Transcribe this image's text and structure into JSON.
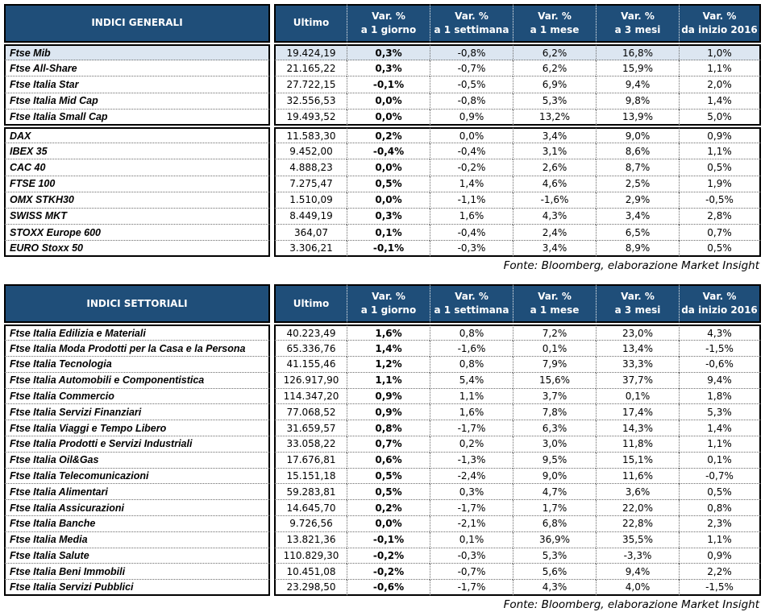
{
  "colors": {
    "header_bg": "#1F4E79",
    "header_text": "#FFFFFF",
    "highlight_row_bg": "#DCE6F1",
    "border": "#000000"
  },
  "tables": [
    {
      "title": "INDICI GENERALI",
      "source": "Fonte: Bloomberg, elaborazione Market Insight",
      "columns": [
        {
          "line1": "Ultimo",
          "line2": ""
        },
        {
          "line1": "Var. %",
          "line2": "a 1 giorno"
        },
        {
          "line1": "Var. %",
          "line2": "a 1 settimana"
        },
        {
          "line1": "Var. %",
          "line2": "a 1 mese"
        },
        {
          "line1": "Var. %",
          "line2": "a 3 mesi"
        },
        {
          "line1": "Var. %",
          "line2": "da inizio 2016"
        }
      ],
      "groups": [
        {
          "rows": [
            {
              "name": "Ftse Mib",
              "ultimo": "19.424,19",
              "vars": [
                "0,3%",
                "-0,8%",
                "6,2%",
                "16,8%",
                "1,0%"
              ],
              "highlight": true
            },
            {
              "name": "Ftse All-Share",
              "ultimo": "21.165,22",
              "vars": [
                "0,3%",
                "-0,7%",
                "6,2%",
                "15,9%",
                "1,1%"
              ],
              "highlight": false
            },
            {
              "name": "Ftse Italia Star",
              "ultimo": "27.722,15",
              "vars": [
                "-0,1%",
                "-0,5%",
                "6,9%",
                "9,4%",
                "2,0%"
              ],
              "highlight": false
            },
            {
              "name": "Ftse Italia Mid Cap",
              "ultimo": "32.556,53",
              "vars": [
                "0,0%",
                "-0,8%",
                "5,3%",
                "9,8%",
                "1,4%"
              ],
              "highlight": false
            },
            {
              "name": "Ftse Italia Small Cap",
              "ultimo": "19.493,52",
              "vars": [
                "0,0%",
                "0,9%",
                "13,2%",
                "13,9%",
                "5,0%"
              ],
              "highlight": false
            }
          ]
        },
        {
          "rows": [
            {
              "name": "DAX",
              "ultimo": "11.583,30",
              "vars": [
                "0,2%",
                "0,0%",
                "3,4%",
                "9,0%",
                "0,9%"
              ],
              "highlight": false
            },
            {
              "name": "IBEX 35",
              "ultimo": "9.452,00",
              "vars": [
                "-0,4%",
                "-0,4%",
                "3,1%",
                "8,6%",
                "1,1%"
              ],
              "highlight": false
            },
            {
              "name": "CAC 40",
              "ultimo": "4.888,23",
              "vars": [
                "0,0%",
                "-0,2%",
                "2,6%",
                "8,7%",
                "0,5%"
              ],
              "highlight": false
            },
            {
              "name": "FTSE 100",
              "ultimo": "7.275,47",
              "vars": [
                "0,5%",
                "1,4%",
                "4,6%",
                "2,5%",
                "1,9%"
              ],
              "highlight": false
            },
            {
              "name": "OMX STKH30",
              "ultimo": "1.510,09",
              "vars": [
                "0,0%",
                "-1,1%",
                "-1,6%",
                "2,9%",
                "-0,5%"
              ],
              "highlight": false
            },
            {
              "name": "SWISS MKT",
              "ultimo": "8.449,19",
              "vars": [
                "0,3%",
                "1,6%",
                "4,3%",
                "3,4%",
                "2,8%"
              ],
              "highlight": false
            },
            {
              "name": "STOXX Europe 600",
              "ultimo": "364,07",
              "vars": [
                "0,1%",
                "-0,4%",
                "2,4%",
                "6,5%",
                "0,7%"
              ],
              "highlight": false
            },
            {
              "name": "EURO Stoxx 50",
              "ultimo": "3.306,21",
              "vars": [
                "-0,1%",
                "-0,3%",
                "3,4%",
                "8,9%",
                "0,5%"
              ],
              "highlight": false
            }
          ]
        }
      ]
    },
    {
      "title": "INDICI SETTORIALI",
      "source": "Fonte: Bloomberg, elaborazione Market Insight",
      "columns": [
        {
          "line1": "Ultimo",
          "line2": ""
        },
        {
          "line1": "Var. %",
          "line2": "a 1 giorno"
        },
        {
          "line1": "Var. %",
          "line2": "a 1 settimana"
        },
        {
          "line1": "Var. %",
          "line2": "a 1 mese"
        },
        {
          "line1": "Var. %",
          "line2": "a 3 mesi"
        },
        {
          "line1": "Var. %",
          "line2": "da inizio 2016"
        }
      ],
      "groups": [
        {
          "rows": [
            {
              "name": "Ftse Italia Edilizia e Materiali",
              "ultimo": "40.223,49",
              "vars": [
                "1,6%",
                "0,8%",
                "7,2%",
                "23,0%",
                "4,3%"
              ],
              "highlight": false
            },
            {
              "name": "Ftse Italia Moda Prodotti per la Casa e la Persona",
              "ultimo": "65.336,76",
              "vars": [
                "1,4%",
                "-1,6%",
                "0,1%",
                "13,4%",
                "-1,5%"
              ],
              "highlight": false
            },
            {
              "name": "Ftse Italia Tecnologia",
              "ultimo": "41.155,46",
              "vars": [
                "1,2%",
                "0,8%",
                "7,9%",
                "33,3%",
                "-0,6%"
              ],
              "highlight": false
            },
            {
              "name": "Ftse Italia Automobili e Componentistica",
              "ultimo": "126.917,90",
              "vars": [
                "1,1%",
                "5,4%",
                "15,6%",
                "37,7%",
                "9,4%"
              ],
              "highlight": false
            },
            {
              "name": "Ftse Italia Commercio",
              "ultimo": "114.347,20",
              "vars": [
                "0,9%",
                "1,1%",
                "3,7%",
                "0,1%",
                "1,8%"
              ],
              "highlight": false
            },
            {
              "name": "Ftse Italia Servizi Finanziari",
              "ultimo": "77.068,52",
              "vars": [
                "0,9%",
                "1,6%",
                "7,8%",
                "17,4%",
                "5,3%"
              ],
              "highlight": false
            },
            {
              "name": "Ftse Italia Viaggi e Tempo Libero",
              "ultimo": "31.659,57",
              "vars": [
                "0,8%",
                "-1,7%",
                "6,3%",
                "14,3%",
                "1,4%"
              ],
              "highlight": false
            },
            {
              "name": "Ftse Italia Prodotti e Servizi Industriali",
              "ultimo": "33.058,22",
              "vars": [
                "0,7%",
                "0,2%",
                "3,0%",
                "11,8%",
                "1,1%"
              ],
              "highlight": false
            },
            {
              "name": "Ftse Italia Oil&Gas",
              "ultimo": "17.676,81",
              "vars": [
                "0,6%",
                "-1,3%",
                "9,5%",
                "15,1%",
                "0,1%"
              ],
              "highlight": false
            },
            {
              "name": "Ftse Italia Telecomunicazioni",
              "ultimo": "15.151,18",
              "vars": [
                "0,5%",
                "-2,4%",
                "9,0%",
                "11,6%",
                "-0,7%"
              ],
              "highlight": false
            },
            {
              "name": "Ftse Italia Alimentari",
              "ultimo": "59.283,81",
              "vars": [
                "0,5%",
                "0,3%",
                "4,7%",
                "3,6%",
                "0,5%"
              ],
              "highlight": false
            },
            {
              "name": "Ftse Italia Assicurazioni",
              "ultimo": "14.645,70",
              "vars": [
                "0,2%",
                "-1,7%",
                "1,7%",
                "22,0%",
                "0,8%"
              ],
              "highlight": false
            },
            {
              "name": "Ftse Italia Banche",
              "ultimo": "9.726,56",
              "vars": [
                "0,0%",
                "-2,1%",
                "6,8%",
                "22,8%",
                "2,3%"
              ],
              "highlight": false
            },
            {
              "name": "Ftse Italia Media",
              "ultimo": "13.821,36",
              "vars": [
                "-0,1%",
                "0,1%",
                "36,9%",
                "35,5%",
                "1,1%"
              ],
              "highlight": false
            },
            {
              "name": "Ftse Italia Salute",
              "ultimo": "110.829,30",
              "vars": [
                "-0,2%",
                "-0,3%",
                "5,3%",
                "-3,3%",
                "0,9%"
              ],
              "highlight": false
            },
            {
              "name": "Ftse Italia Beni Immobili",
              "ultimo": "10.451,08",
              "vars": [
                "-0,2%",
                "-0,7%",
                "5,6%",
                "9,4%",
                "2,2%"
              ],
              "highlight": false
            },
            {
              "name": "Ftse Italia Servizi Pubblici",
              "ultimo": "23.298,50",
              "vars": [
                "-0,6%",
                "-1,7%",
                "4,3%",
                "4,0%",
                "-1,5%"
              ],
              "highlight": false
            }
          ]
        }
      ]
    }
  ]
}
